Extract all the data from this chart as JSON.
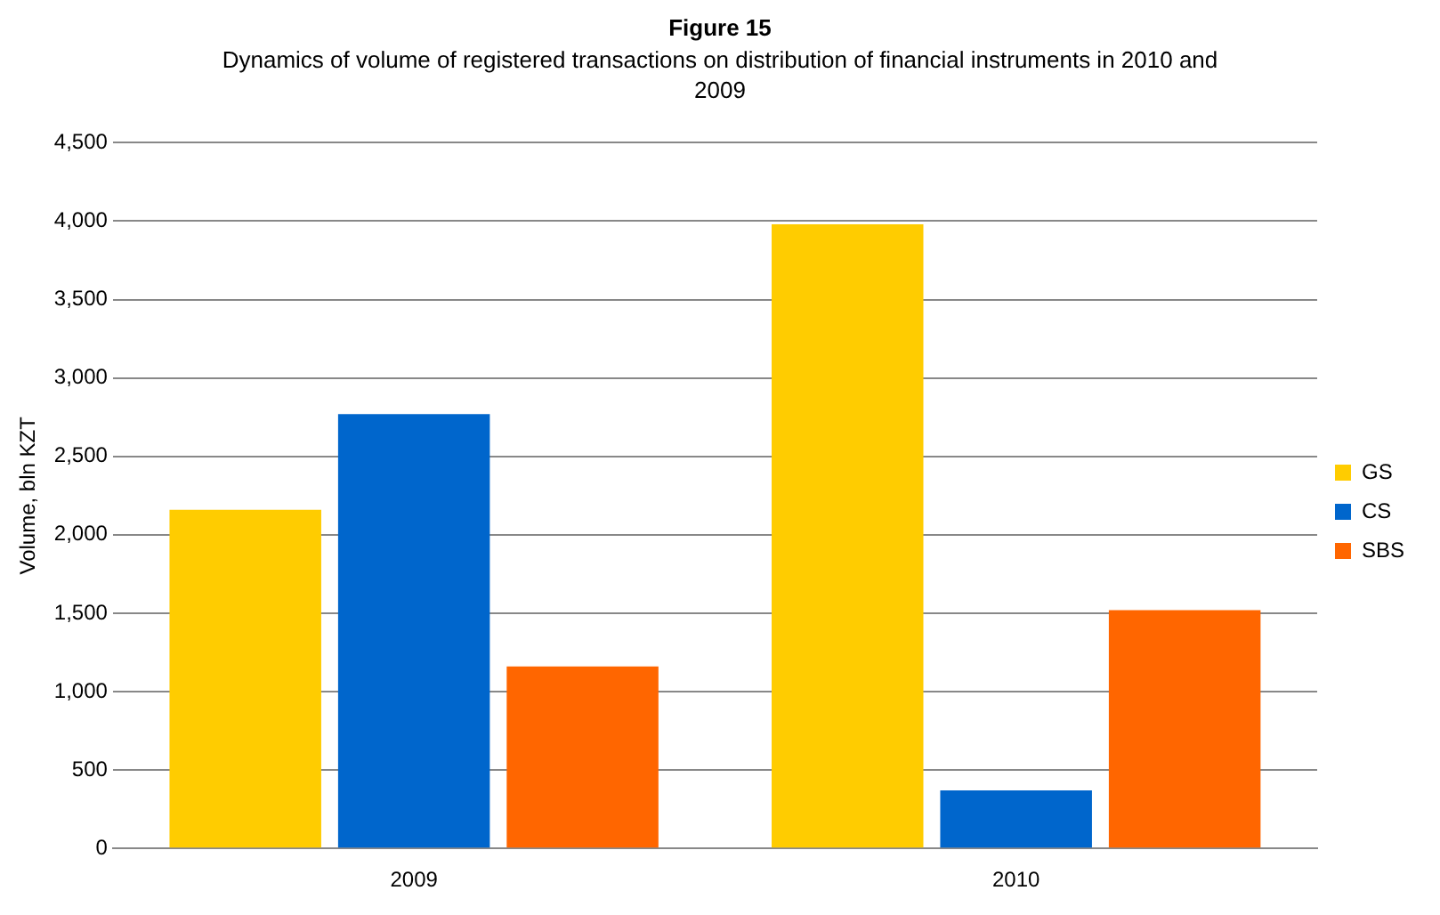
{
  "chart_data": {
    "type": "bar",
    "title": "Figure 15",
    "subtitle": "Dynamics of volume of registered transactions on distribution of financial instruments in 2010 and 2009",
    "ylabel": "Volume, bln KZT",
    "categories": [
      "2009",
      "2010"
    ],
    "series": [
      {
        "name": "GS",
        "color": "#ffcc00",
        "values": [
          2160,
          3980
        ]
      },
      {
        "name": "CS",
        "color": "#0066cc",
        "values": [
          2770,
          370
        ]
      },
      {
        "name": "SBS",
        "color": "#ff6600",
        "values": [
          1160,
          1520
        ]
      }
    ],
    "ylim": [
      0,
      4500
    ],
    "yticks": [
      0,
      {
        "value": 500,
        "label": "500"
      },
      {
        "value": 1000,
        "label": "1,000"
      },
      {
        "value": 1500,
        "label": "1,500"
      },
      {
        "value": 2000,
        "label": "2,000"
      },
      {
        "value": 2500,
        "label": "2,500"
      },
      {
        "value": 3000,
        "label": "3,000"
      },
      {
        "value": 3500,
        "label": "3,500"
      },
      {
        "value": 4000,
        "label": "4,000"
      },
      {
        "value": 4500,
        "label": "4,500"
      }
    ],
    "grid": "y",
    "legend": "right"
  }
}
